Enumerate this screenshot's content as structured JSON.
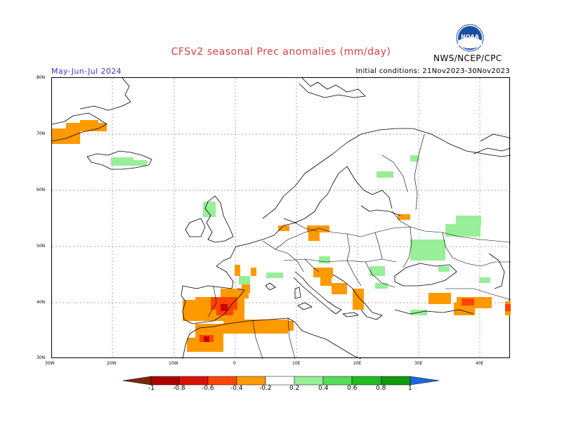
{
  "header": {
    "title": "CFSv2 seasonal Prec anomalies (mm/day)",
    "period": "May-Jun-Jul 2024",
    "initial_conditions": "Initial conditions: 21Nov2023-30Nov2023",
    "agency": "NWS/NCEP/CPC",
    "logo_text": "NOAA"
  },
  "colors": {
    "title": "#d94040",
    "period": "#3a3acc",
    "grid": "#888888",
    "coast": "#000000",
    "dry_strong": "#cc0000",
    "dry_medium": "#ff4400",
    "dry_light": "#ff9900",
    "wet_light": "#99ee99"
  },
  "map": {
    "lat_labels": [
      "80N",
      "70N",
      "60N",
      "50N",
      "40N",
      "30N"
    ],
    "lon_labels": [
      "30W",
      "20W",
      "10W",
      "0",
      "10E",
      "20E",
      "30E",
      "40E"
    ]
  },
  "legend": {
    "labels": [
      "-1",
      "-0.8",
      "-0.6",
      "-0.4",
      "-0.2",
      "0.2",
      "0.4",
      "0.6",
      "0.8",
      "1"
    ],
    "segments": [
      "#7a2a0a",
      "#aa0000",
      "#dd1100",
      "#ff4400",
      "#ff9900",
      "#ffffff",
      "#99ee99",
      "#55dd55",
      "#22bb22",
      "#119911",
      "#2266dd"
    ]
  }
}
